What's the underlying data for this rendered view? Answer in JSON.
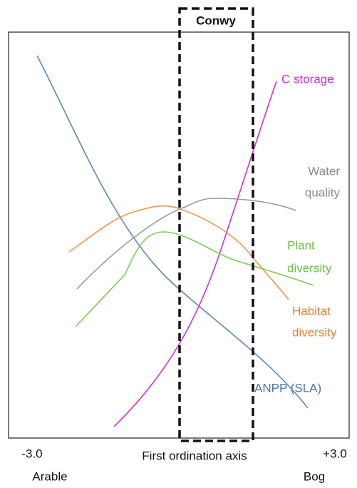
{
  "region_label": "Conwy",
  "curves": [
    {
      "label": [
        "C storage"
      ]
    },
    {
      "label": [
        "Water",
        "quality"
      ]
    },
    {
      "label": [
        "Plant",
        "diversity"
      ]
    },
    {
      "label": [
        "Habitat",
        "diversity"
      ]
    },
    {
      "label": [
        "ANPP (SLA)"
      ]
    }
  ],
  "axis": {
    "left": "-3.0",
    "right": "+3.0",
    "title": "First ordination axis",
    "left_end": "Arable",
    "right_end": "Bog"
  }
}
